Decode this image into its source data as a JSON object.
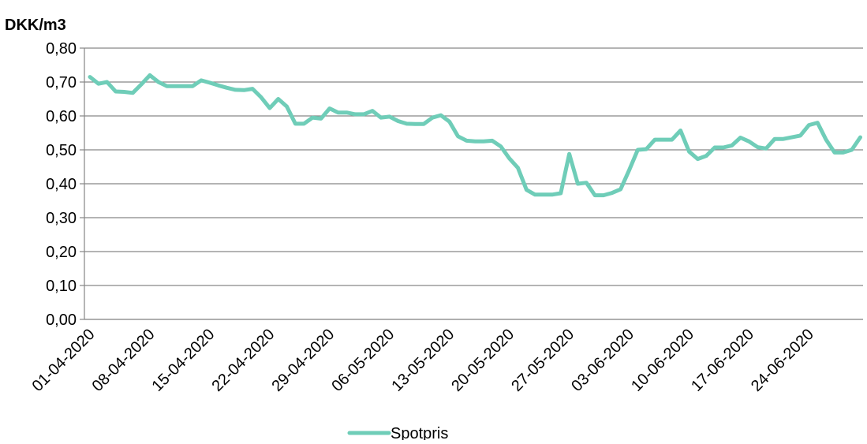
{
  "chart_data": {
    "type": "line",
    "unit_label": "DKK/m3",
    "ylim": [
      0,
      0.8
    ],
    "yticks": [
      "0,00",
      "0,10",
      "0,20",
      "0,30",
      "0,40",
      "0,50",
      "0,60",
      "0,70",
      "0,80"
    ],
    "xticks": [
      "01-04-2020",
      "08-04-2020",
      "15-04-2020",
      "22-04-2020",
      "29-04-2020",
      "06-05-2020",
      "13-05-2020",
      "20-05-2020",
      "27-05-2020",
      "03-06-2020",
      "10-06-2020",
      "17-06-2020",
      "24-06-2020"
    ],
    "grid": true,
    "legend_position": "bottom",
    "series": [
      {
        "name": "Spotpris",
        "color": "#6fcdb8",
        "x": [
          "01-04-2020",
          "02-04-2020",
          "03-04-2020",
          "04-04-2020",
          "05-04-2020",
          "06-04-2020",
          "07-04-2020",
          "08-04-2020",
          "09-04-2020",
          "10-04-2020",
          "11-04-2020",
          "12-04-2020",
          "13-04-2020",
          "14-04-2020",
          "15-04-2020",
          "16-04-2020",
          "17-04-2020",
          "18-04-2020",
          "19-04-2020",
          "20-04-2020",
          "21-04-2020",
          "22-04-2020",
          "23-04-2020",
          "24-04-2020",
          "25-04-2020",
          "26-04-2020",
          "27-04-2020",
          "28-04-2020",
          "29-04-2020",
          "30-04-2020",
          "01-05-2020",
          "02-05-2020",
          "03-05-2020",
          "04-05-2020",
          "05-05-2020",
          "06-05-2020",
          "07-05-2020",
          "08-05-2020",
          "09-05-2020",
          "10-05-2020",
          "11-05-2020",
          "12-05-2020",
          "13-05-2020",
          "14-05-2020",
          "15-05-2020",
          "16-05-2020",
          "17-05-2020",
          "18-05-2020",
          "19-05-2020",
          "20-05-2020",
          "21-05-2020",
          "22-05-2020",
          "23-05-2020",
          "24-05-2020",
          "25-05-2020",
          "26-05-2020",
          "27-05-2020",
          "28-05-2020",
          "29-05-2020",
          "30-05-2020",
          "31-05-2020",
          "01-06-2020",
          "02-06-2020",
          "03-06-2020",
          "04-06-2020",
          "05-06-2020",
          "06-06-2020",
          "07-06-2020",
          "08-06-2020",
          "09-06-2020",
          "10-06-2020",
          "11-06-2020",
          "12-06-2020",
          "13-06-2020",
          "14-06-2020",
          "15-06-2020",
          "16-06-2020",
          "17-06-2020",
          "18-06-2020",
          "19-06-2020",
          "20-06-2020",
          "21-06-2020",
          "22-06-2020",
          "23-06-2020",
          "24-06-2020",
          "25-06-2020",
          "26-06-2020",
          "27-06-2020",
          "28-06-2020",
          "29-06-2020",
          "30-06-2020"
        ],
        "values": [
          0.715,
          0.695,
          0.7,
          0.672,
          0.671,
          0.668,
          0.693,
          0.72,
          0.7,
          0.688,
          0.688,
          0.688,
          0.688,
          0.705,
          0.698,
          0.69,
          0.683,
          0.677,
          0.676,
          0.68,
          0.655,
          0.623,
          0.65,
          0.628,
          0.577,
          0.577,
          0.595,
          0.592,
          0.622,
          0.61,
          0.61,
          0.605,
          0.605,
          0.615,
          0.595,
          0.598,
          0.585,
          0.577,
          0.576,
          0.576,
          0.595,
          0.602,
          0.583,
          0.54,
          0.527,
          0.525,
          0.525,
          0.527,
          0.51,
          0.475,
          0.447,
          0.382,
          0.368,
          0.368,
          0.368,
          0.372,
          0.488,
          0.4,
          0.403,
          0.366,
          0.366,
          0.373,
          0.384,
          0.44,
          0.5,
          0.502,
          0.53,
          0.53,
          0.53,
          0.557,
          0.495,
          0.473,
          0.482,
          0.507,
          0.507,
          0.513,
          0.536,
          0.525,
          0.508,
          0.504,
          0.532,
          0.532,
          0.537,
          0.542,
          0.573,
          0.58,
          0.53,
          0.492,
          0.492,
          0.5,
          0.537
        ]
      }
    ]
  }
}
